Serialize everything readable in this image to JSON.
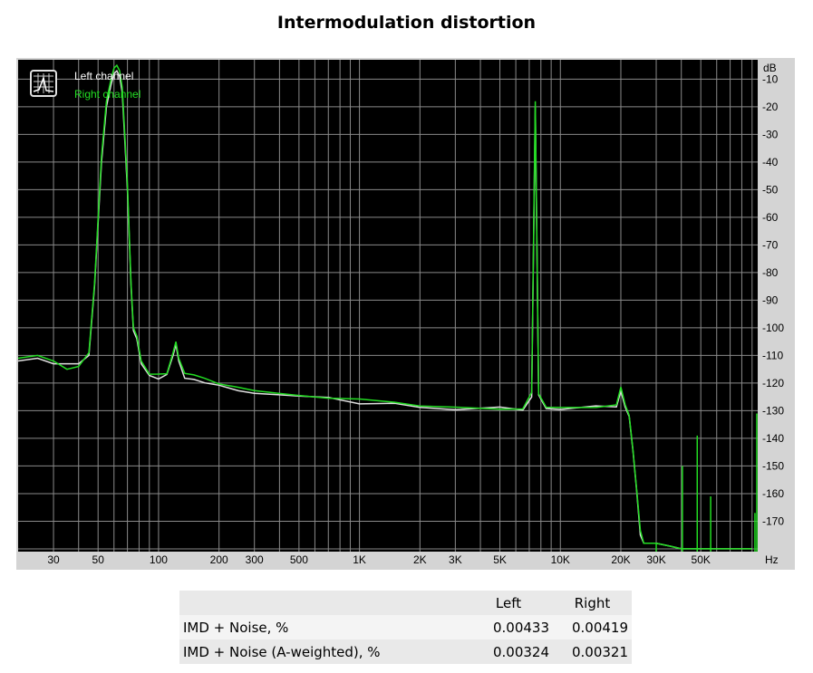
{
  "chart_data": {
    "type": "line",
    "title": "Intermodulation distortion",
    "xlabel": "",
    "ylabel": "",
    "x_unit": "Hz",
    "y_unit": "dB",
    "x_scale": "log",
    "xlim": [
      20,
      96000
    ],
    "ylim": [
      -181,
      -3
    ],
    "grid": true,
    "background": "#000000",
    "legend_position": "top-left",
    "x_ticks": [
      {
        "value": 30,
        "label": "30"
      },
      {
        "value": 50,
        "label": "50"
      },
      {
        "value": 100,
        "label": "100"
      },
      {
        "value": 200,
        "label": "200"
      },
      {
        "value": 300,
        "label": "300"
      },
      {
        "value": 500,
        "label": "500"
      },
      {
        "value": 1000,
        "label": "1K"
      },
      {
        "value": 2000,
        "label": "2K"
      },
      {
        "value": 3000,
        "label": "3K"
      },
      {
        "value": 5000,
        "label": "5K"
      },
      {
        "value": 10000,
        "label": "10K"
      },
      {
        "value": 20000,
        "label": "20K"
      },
      {
        "value": 30000,
        "label": "30K"
      },
      {
        "value": 50000,
        "label": "50K"
      }
    ],
    "y_ticks": [
      -10,
      -20,
      -30,
      -40,
      -50,
      -60,
      -70,
      -80,
      -90,
      -100,
      -110,
      -120,
      -130,
      -140,
      -150,
      -160,
      -170
    ],
    "series": [
      {
        "name": "Left channel",
        "color": "#e0e0e0",
        "points": [
          [
            20,
            -112
          ],
          [
            25,
            -111
          ],
          [
            30,
            -113
          ],
          [
            35,
            -113
          ],
          [
            40,
            -113
          ],
          [
            45,
            -110
          ],
          [
            48,
            -85
          ],
          [
            52,
            -40
          ],
          [
            55,
            -20
          ],
          [
            58,
            -12
          ],
          [
            60,
            -8
          ],
          [
            62,
            -7
          ],
          [
            64,
            -9
          ],
          [
            66,
            -15
          ],
          [
            70,
            -50
          ],
          [
            73,
            -85
          ],
          [
            75,
            -101
          ],
          [
            78,
            -104
          ],
          [
            82,
            -113
          ],
          [
            90,
            -118
          ],
          [
            100,
            -118
          ],
          [
            110,
            -117
          ],
          [
            118,
            -110
          ],
          [
            122,
            -106
          ],
          [
            126,
            -112
          ],
          [
            135,
            -118
          ],
          [
            150,
            -118
          ],
          [
            170,
            -120
          ],
          [
            200,
            -120
          ],
          [
            250,
            -122
          ],
          [
            300,
            -123
          ],
          [
            400,
            -124
          ],
          [
            500,
            -125
          ],
          [
            700,
            -126
          ],
          [
            1000,
            -127
          ],
          [
            1500,
            -128
          ],
          [
            2000,
            -128
          ],
          [
            3000,
            -129
          ],
          [
            5000,
            -129
          ],
          [
            6500,
            -129
          ],
          [
            7200,
            -125
          ],
          [
            7500,
            -20
          ],
          [
            7800,
            -125
          ],
          [
            8500,
            -129
          ],
          [
            10000,
            -129
          ],
          [
            15000,
            -129
          ],
          [
            19000,
            -128
          ],
          [
            20000,
            -122
          ],
          [
            21000,
            -128
          ],
          [
            22000,
            -132
          ],
          [
            23000,
            -145
          ],
          [
            24000,
            -160
          ],
          [
            25000,
            -175
          ],
          [
            26000,
            -178
          ],
          [
            30000,
            -178
          ],
          [
            35000,
            -179
          ],
          [
            40000,
            -180
          ],
          [
            60000,
            -180
          ],
          [
            90000,
            -180
          ]
        ]
      },
      {
        "name": "Right channel",
        "color": "#22dd22",
        "points": [
          [
            20,
            -111
          ],
          [
            25,
            -110
          ],
          [
            30,
            -112
          ],
          [
            35,
            -115
          ],
          [
            40,
            -114
          ],
          [
            45,
            -109
          ],
          [
            48,
            -84
          ],
          [
            52,
            -38
          ],
          [
            55,
            -18
          ],
          [
            58,
            -10
          ],
          [
            60,
            -6
          ],
          [
            62,
            -5
          ],
          [
            64,
            -7
          ],
          [
            66,
            -13
          ],
          [
            70,
            -48
          ],
          [
            73,
            -84
          ],
          [
            75,
            -100
          ],
          [
            78,
            -103
          ],
          [
            82,
            -112
          ],
          [
            90,
            -117
          ],
          [
            100,
            -117
          ],
          [
            110,
            -116
          ],
          [
            118,
            -109
          ],
          [
            122,
            -105
          ],
          [
            126,
            -111
          ],
          [
            135,
            -117
          ],
          [
            150,
            -117
          ],
          [
            170,
            -119
          ],
          [
            200,
            -120
          ],
          [
            250,
            -121
          ],
          [
            300,
            -122
          ],
          [
            400,
            -123
          ],
          [
            500,
            -124
          ],
          [
            700,
            -126
          ],
          [
            1000,
            -126
          ],
          [
            1500,
            -127
          ],
          [
            2000,
            -128
          ],
          [
            3000,
            -128
          ],
          [
            5000,
            -129
          ],
          [
            6500,
            -129
          ],
          [
            7200,
            -124
          ],
          [
            7500,
            -18
          ],
          [
            7800,
            -124
          ],
          [
            8500,
            -128
          ],
          [
            10000,
            -129
          ],
          [
            15000,
            -129
          ],
          [
            19000,
            -128
          ],
          [
            20000,
            -121
          ],
          [
            21000,
            -127
          ],
          [
            22000,
            -131
          ],
          [
            23000,
            -144
          ],
          [
            24000,
            -159
          ],
          [
            25000,
            -174
          ],
          [
            26000,
            -178
          ],
          [
            30000,
            -178
          ],
          [
            35000,
            -179
          ],
          [
            40000,
            -180
          ],
          [
            60000,
            -180
          ],
          [
            90000,
            -180
          ]
        ]
      }
    ],
    "spurs": [
      {
        "x": 30000,
        "y": -178
      },
      {
        "x": 40500,
        "y": -150
      },
      {
        "x": 48000,
        "y": -139
      },
      {
        "x": 56000,
        "y": -161
      },
      {
        "x": 93000,
        "y": -167
      },
      {
        "x": 95000,
        "y": -131
      }
    ]
  },
  "table": {
    "headers": [
      "",
      "Left",
      "Right"
    ],
    "rows": [
      {
        "label": "IMD + Noise, %",
        "left": "0.00433",
        "right": "0.00419"
      },
      {
        "label": "IMD + Noise (A-weighted), %",
        "left": "0.00324",
        "right": "0.00321"
      }
    ]
  }
}
